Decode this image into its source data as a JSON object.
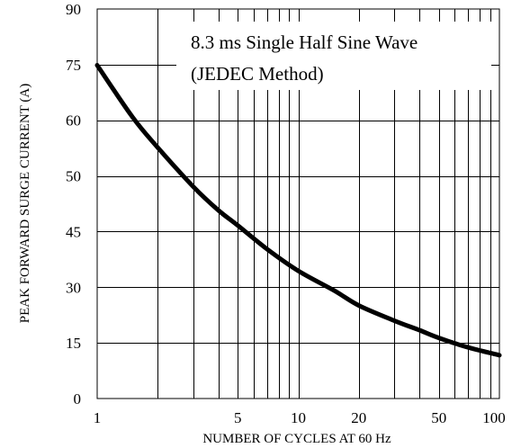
{
  "chart_data": {
    "type": "line",
    "title": "",
    "xlabel": "NUMBER OF CYCLES AT 60 Hz",
    "ylabel": "PEAK FORWARD SURGE CURRENT (A)",
    "x_scale": "log",
    "xlim": [
      1,
      100
    ],
    "ylim": [
      0,
      90
    ],
    "grid": true,
    "x_ticks": [
      {
        "value": 1,
        "label": "1"
      },
      {
        "value": 5,
        "label": "5"
      },
      {
        "value": 10,
        "label": "10"
      },
      {
        "value": 20,
        "label": "20"
      },
      {
        "value": 50,
        "label": "50"
      },
      {
        "value": 100,
        "label": "100"
      }
    ],
    "y_ticks": [
      {
        "label": "0"
      },
      {
        "label": "15"
      },
      {
        "label": "30"
      },
      {
        "label": "45"
      },
      {
        "label": "50"
      },
      {
        "label": "60"
      },
      {
        "label": "75"
      },
      {
        "label": "90"
      }
    ],
    "annotation": {
      "lines": [
        "8.3 ms Single Half Sine Wave",
        "(JEDEC Method)"
      ]
    },
    "series": [
      {
        "x": [
          1,
          1.5,
          2,
          3,
          4,
          5,
          7,
          10,
          15,
          20,
          30,
          40,
          50,
          70,
          100
        ],
        "y": [
          77,
          65,
          58,
          49,
          43.5,
          40,
          34.5,
          29.5,
          25,
          21.5,
          18,
          15.8,
          14,
          11.8,
          10
        ]
      }
    ]
  }
}
